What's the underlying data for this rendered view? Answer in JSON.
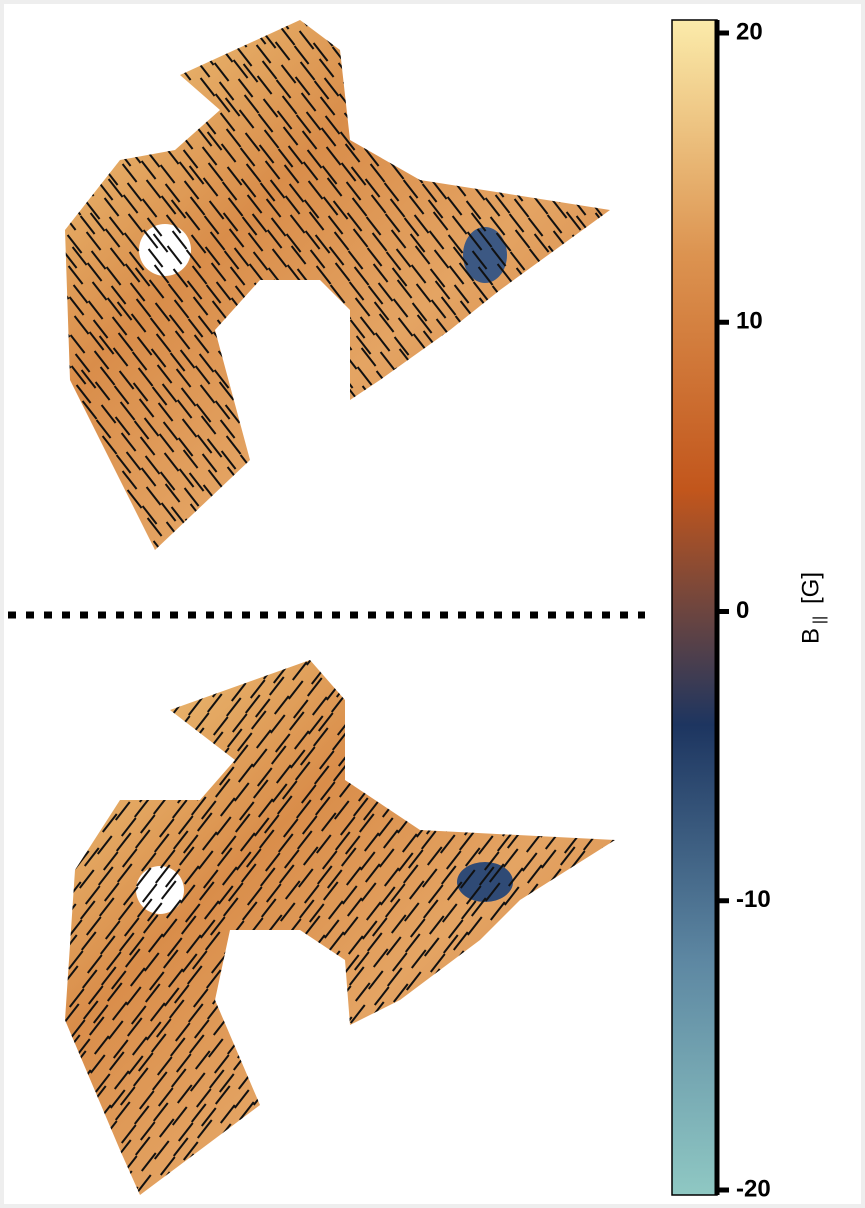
{
  "chart_data": {
    "type": "colorbar",
    "label_main": "B",
    "label_sub": "||",
    "label_unit": "[G]",
    "clim": [
      -20,
      20
    ],
    "yticks": [
      20,
      10,
      0,
      -10,
      -20
    ],
    "colors": [
      "#8fc8c3",
      "#5d87a2",
      "#1d3560",
      "#c2561c",
      "#dc9350",
      "#fbebaa"
    ]
  }
}
